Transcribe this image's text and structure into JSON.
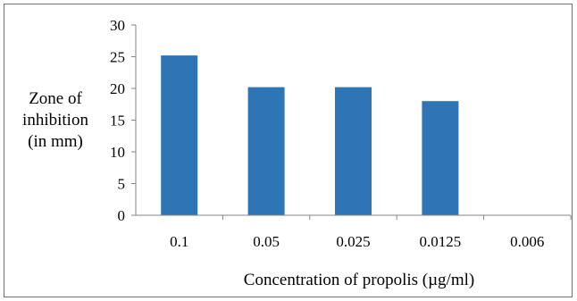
{
  "chart_data": {
    "type": "bar",
    "categories": [
      "0.1",
      "0.05",
      "0.025",
      "0.0125",
      "0.006"
    ],
    "values": [
      25.2,
      20.2,
      20.2,
      18.0,
      0
    ],
    "ylabel_lines": [
      "Zone of",
      "inhibition",
      "(in mm)"
    ],
    "xlabel": "Concentration of propolis (µg/ml)",
    "ylim": [
      0,
      30
    ],
    "yticks": [
      0,
      5,
      10,
      15,
      20,
      25,
      30
    ],
    "grid": false,
    "legend": "none",
    "colors": {
      "bar": "#2E75B6",
      "axis": "#868686",
      "frame": "#6e6e6e"
    }
  }
}
